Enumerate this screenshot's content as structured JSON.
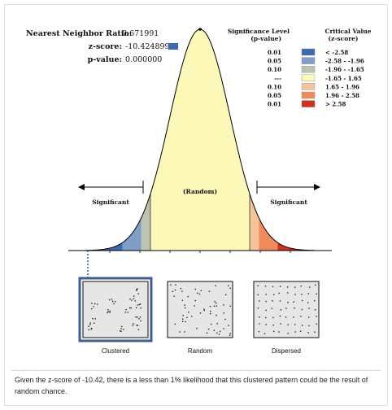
{
  "stats": {
    "nnr_label": "Nearest Neighbor Ratio:",
    "nnr_value": "0.671991",
    "z_label": "z-score:",
    "z_value": "-10.424899",
    "p_label": "p-value:",
    "p_value": "0.000000"
  },
  "legend": {
    "header_significance": [
      "Significance Level",
      "(p-value)"
    ],
    "header_critical": [
      "Critical Value",
      "(z-score)"
    ],
    "rows": [
      {
        "p": "0.01",
        "z": "< -2.58",
        "color": "#3b6ab2"
      },
      {
        "p": "0.05",
        "z": "-2.58 - -1.96",
        "color": "#7e9dc7"
      },
      {
        "p": "0.10",
        "z": "-1.96 - -1.65",
        "color": "#bcc4b0"
      },
      {
        "p": "---",
        "z": "-1.65 - 1.65",
        "color": "#fbf8b8"
      },
      {
        "p": "0.10",
        "z": "1.65 - 1.96",
        "color": "#f5c49a"
      },
      {
        "p": "0.05",
        "z": "1.96 - 2.58",
        "color": "#f08a5a"
      },
      {
        "p": "0.01",
        "z": "> 2.58",
        "color": "#d42e1e"
      }
    ]
  },
  "chart_data": {
    "type": "area",
    "distribution": "standard normal",
    "bands": [
      {
        "range": "< -2.58",
        "color": "#3b6ab2"
      },
      {
        "range": "-2.58 - -1.96",
        "color": "#7e9dc7"
      },
      {
        "range": "-1.96 - -1.65",
        "color": "#bcc4b0"
      },
      {
        "range": "-1.65 - 1.65",
        "color": "#fbf8b8"
      },
      {
        "range": "1.65 - 1.96",
        "color": "#f5c49a"
      },
      {
        "range": "1.96 - 2.58",
        "color": "#f08a5a"
      },
      {
        "range": "> 2.58",
        "color": "#d42e1e"
      }
    ],
    "observed_z": -10.424899,
    "labels": {
      "left": "Significant",
      "center": "(Random)",
      "right": "Significant"
    }
  },
  "patterns": [
    {
      "label": "Clustered",
      "selected": true
    },
    {
      "label": "Random",
      "selected": false
    },
    {
      "label": "Dispersed",
      "selected": false
    }
  ],
  "summary": "Given the z-score of -10.42, there is a less than 1% likelihood that this clustered pattern could be the result of random chance."
}
